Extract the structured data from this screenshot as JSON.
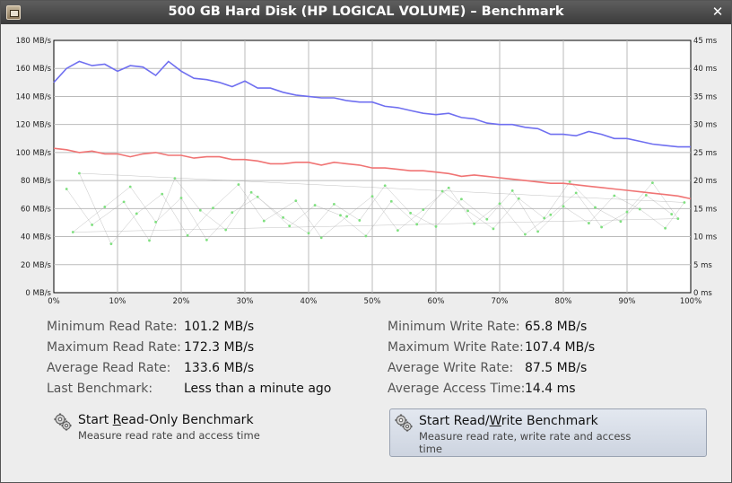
{
  "window": {
    "title": "500 GB Hard Disk (HP LOGICAL VOLUME) – Benchmark",
    "close_symbol": "✕"
  },
  "chart_data": {
    "type": "line",
    "left_axis_ticks": [
      "0 MB/s",
      "20 MB/s",
      "40 MB/s",
      "60 MB/s",
      "80 MB/s",
      "100 MB/s",
      "120 MB/s",
      "140 MB/s",
      "160 MB/s",
      "180 MB/s"
    ],
    "right_axis_ticks": [
      "0 ms",
      "5 ms",
      "10 ms",
      "15 ms",
      "20 ms",
      "25 ms",
      "30 ms",
      "35 ms",
      "40 ms",
      "45 ms"
    ],
    "x_axis_ticks": [
      "0%",
      "10%",
      "20%",
      "30%",
      "40%",
      "50%",
      "60%",
      "70%",
      "80%",
      "90%",
      "100%"
    ],
    "ylim_rate": [
      0,
      180
    ],
    "ylim_time": [
      0,
      45
    ],
    "xlim": [
      0,
      100
    ],
    "grid": true,
    "colors": {
      "read": "#6f6ff0",
      "write": "#f07474",
      "access": "#7fe07f"
    },
    "series": [
      {
        "key": "read",
        "x": [
          0,
          2,
          4,
          6,
          8,
          10,
          12,
          14,
          16,
          18,
          20,
          22,
          24,
          26,
          28,
          30,
          32,
          34,
          36,
          38,
          40,
          42,
          44,
          46,
          48,
          50,
          52,
          54,
          56,
          58,
          60,
          62,
          64,
          66,
          68,
          70,
          72,
          74,
          76,
          78,
          80,
          82,
          84,
          86,
          88,
          90,
          92,
          94,
          96,
          98,
          100
        ],
        "values": [
          150,
          160,
          165,
          162,
          163,
          158,
          162,
          161,
          155,
          165,
          158,
          153,
          152,
          150,
          147,
          151,
          146,
          146,
          143,
          141,
          140,
          139,
          139,
          137,
          136,
          136,
          133,
          132,
          130,
          128,
          127,
          128,
          125,
          124,
          121,
          120,
          120,
          118,
          117,
          113,
          113,
          112,
          115,
          113,
          110,
          110,
          108,
          106,
          105,
          104,
          104
        ]
      },
      {
        "key": "write",
        "x": [
          0,
          2,
          4,
          6,
          8,
          10,
          12,
          14,
          16,
          18,
          20,
          22,
          24,
          26,
          28,
          30,
          32,
          34,
          36,
          38,
          40,
          42,
          44,
          46,
          48,
          50,
          52,
          54,
          56,
          58,
          60,
          62,
          64,
          66,
          68,
          70,
          72,
          74,
          76,
          78,
          80,
          82,
          84,
          86,
          88,
          90,
          92,
          94,
          96,
          98,
          100
        ],
        "values": [
          103,
          102,
          100,
          101,
          99,
          99,
          97,
          99,
          100,
          98,
          98,
          96,
          97,
          97,
          95,
          95,
          94,
          92,
          92,
          93,
          93,
          91,
          93,
          92,
          91,
          89,
          89,
          88,
          87,
          87,
          86,
          85,
          83,
          84,
          83,
          82,
          81,
          80,
          79,
          78,
          78,
          77,
          76,
          75,
          74,
          73,
          72,
          71,
          70,
          69,
          67
        ]
      },
      {
        "key": "access",
        "unit": "ms",
        "x": [
          2,
          6,
          11,
          15,
          19,
          23,
          27,
          31,
          36,
          40,
          44,
          48,
          52,
          56,
          60,
          64,
          68,
          72,
          76,
          80,
          84,
          88,
          92,
          96,
          99,
          4,
          9,
          13,
          17,
          21,
          25,
          29,
          33,
          38,
          42,
          46,
          50,
          54,
          58,
          62,
          66,
          70,
          74,
          78,
          82,
          86,
          90,
          94,
          98,
          3,
          8,
          12,
          16,
          20,
          24,
          28,
          32,
          37,
          41,
          45,
          49,
          53,
          57,
          61,
          65,
          69,
          73,
          77,
          81,
          85,
          89,
          93,
          97
        ],
        "values": [
          18.5,
          12.1,
          16.2,
          9.3,
          20.4,
          14.7,
          11.2,
          17.9,
          13.4,
          10.6,
          15.8,
          12.9,
          19.1,
          14.2,
          11.8,
          16.7,
          13.1,
          18.2,
          10.9,
          15.4,
          12.4,
          17.3,
          14.9,
          11.5,
          16.1,
          21.3,
          8.7,
          14.1,
          17.6,
          10.2,
          15.1,
          19.3,
          12.8,
          16.4,
          9.8,
          13.6,
          17.2,
          11.1,
          14.8,
          18.7,
          12.3,
          15.9,
          10.4,
          13.9,
          17.8,
          11.7,
          14.4,
          19.6,
          13.2,
          10.8,
          15.3,
          18.9,
          12.6,
          16.9,
          9.4,
          14.3,
          17.1,
          11.9,
          15.6,
          13.8,
          10.1,
          16.3,
          12.2,
          18.1,
          14.6,
          11.4,
          16.8,
          13.3,
          19.8,
          15.2,
          12.7,
          17.4,
          14.0
        ]
      }
    ]
  },
  "stats": {
    "left": [
      {
        "label": "Minimum Read Rate:",
        "value": "101.2 MB/s"
      },
      {
        "label": "Maximum Read Rate:",
        "value": "172.3 MB/s"
      },
      {
        "label": "Average Read Rate:",
        "value": "133.6 MB/s"
      },
      {
        "label": "Last Benchmark:",
        "value": "Less than a minute ago"
      }
    ],
    "right": [
      {
        "label": "Minimum Write Rate:",
        "value": "65.8 MB/s"
      },
      {
        "label": "Maximum Write Rate:",
        "value": "107.4 MB/s"
      },
      {
        "label": "Average Write Rate:",
        "value": "87.5 MB/s"
      },
      {
        "label": "Average Access Time:",
        "value": "14.4 ms"
      }
    ]
  },
  "buttons": {
    "read_only": {
      "title_pre": "Start ",
      "title_mnemonic": "R",
      "title_post": "ead-Only Benchmark",
      "description": "Measure read rate and access time"
    },
    "read_write": {
      "title_pre": "Start Read/",
      "title_mnemonic": "W",
      "title_post": "rite Benchmark",
      "description_line1": "Measure read rate, write rate and access",
      "description_line2": "time"
    }
  }
}
